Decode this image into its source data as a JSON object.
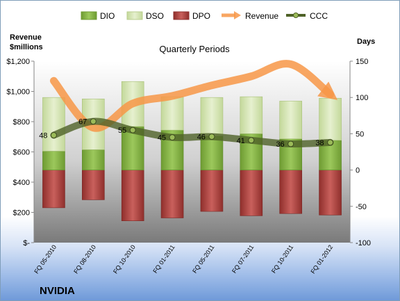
{
  "chart_data": {
    "type": "bar",
    "title": "Quarterly Periods",
    "company": "NVIDIA",
    "left_axis_title": [
      "Revenue",
      "$millions"
    ],
    "right_axis_title": "Days",
    "left_ticks": [
      "$1,200",
      "$1,000",
      "$800",
      "$600",
      "$400",
      "$200",
      "$-"
    ],
    "right_ticks": [
      "150",
      "100",
      "50",
      "0",
      "-50",
      "-100"
    ],
    "ylim_left": [
      0,
      1200
    ],
    "ylim_right": [
      -100,
      150
    ],
    "categories": [
      "FQ 05-2010",
      "FQ 08-2010",
      "FQ 10-2010",
      "FQ 01-2011",
      "FQ 05-2011",
      "FQ 07-2011",
      "FQ 10-2011",
      "FQ 01-2012"
    ],
    "legend": [
      "DIO",
      "DSO",
      "DPO",
      "Revenue",
      "CCC"
    ],
    "colors": {
      "DIO": "#8cb84a",
      "DSO": "#d7e6b4",
      "DPO": "#c0504d",
      "Revenue": "#f79646",
      "CCC": "#4f6228"
    },
    "series": [
      {
        "name": "DIO",
        "axis": "right",
        "values": [
          26,
          28,
          60,
          55,
          47,
          50,
          43,
          41
        ]
      },
      {
        "name": "DSO",
        "axis": "right",
        "values": [
          74,
          70,
          62,
          46,
          53,
          51,
          52,
          58
        ]
      },
      {
        "name": "DPO",
        "axis": "right",
        "values": [
          -52,
          -41,
          -70,
          -66,
          -57,
          -63,
          -60,
          -62
        ]
      },
      {
        "name": "Revenue",
        "axis": "left",
        "values": [
          1070,
          760,
          920,
          970,
          1040,
          1100,
          1180,
          980
        ]
      },
      {
        "name": "CCC",
        "axis": "right",
        "values": [
          48,
          67,
          55,
          45,
          46,
          41,
          36,
          38
        ],
        "labels": [
          "48",
          "67",
          "55",
          "45",
          "46",
          "41",
          "36",
          "38"
        ]
      }
    ]
  }
}
